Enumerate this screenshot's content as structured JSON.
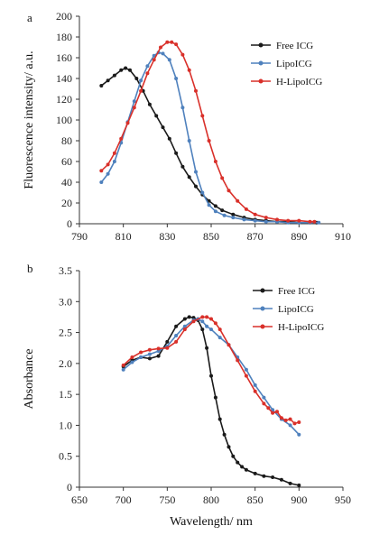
{
  "chart_data": [
    {
      "type": "line",
      "panel_label": "a",
      "xlabel": "",
      "ylabel": "Fluorescence intensity/ a.u.",
      "xlim": [
        790,
        910
      ],
      "ylim": [
        0,
        200
      ],
      "xticks": [
        790,
        810,
        830,
        850,
        870,
        890,
        910
      ],
      "yticks": [
        0,
        20,
        40,
        60,
        80,
        100,
        120,
        140,
        160,
        180,
        200
      ],
      "grid": false,
      "legend_position": "top-right",
      "series": [
        {
          "name": "Free ICG",
          "color": "#1a1a1a",
          "x": [
            800,
            803,
            806,
            809,
            811,
            813,
            816,
            819,
            822,
            825,
            828,
            831,
            834,
            837,
            840,
            843,
            846,
            849,
            852,
            855,
            860,
            865,
            870,
            875,
            880,
            885,
            890,
            895,
            898
          ],
          "y": [
            133,
            138,
            143,
            148,
            150,
            148,
            140,
            128,
            115,
            104,
            93,
            82,
            68,
            55,
            45,
            36,
            28,
            22,
            17,
            13,
            9,
            6,
            4,
            3,
            2,
            2,
            1,
            1,
            1
          ]
        },
        {
          "name": "LipoICG",
          "color": "#4f81bd",
          "x": [
            800,
            803,
            806,
            809,
            812,
            815,
            818,
            821,
            824,
            826,
            828,
            831,
            834,
            837,
            840,
            843,
            846,
            849,
            852,
            856,
            860,
            865,
            870,
            875,
            880,
            885,
            890,
            895,
            899
          ],
          "y": [
            40,
            48,
            60,
            78,
            98,
            118,
            138,
            152,
            162,
            165,
            164,
            158,
            140,
            112,
            80,
            50,
            30,
            18,
            12,
            8,
            6,
            4,
            3,
            2,
            2,
            1,
            1,
            1,
            1
          ]
        },
        {
          "name": "H-LipoICG",
          "color": "#d9302a",
          "x": [
            800,
            803,
            806,
            809,
            812,
            815,
            818,
            821,
            824,
            827,
            830,
            832,
            834,
            837,
            840,
            843,
            846,
            849,
            852,
            855,
            858,
            862,
            866,
            870,
            875,
            880,
            885,
            890,
            895,
            897
          ],
          "y": [
            51,
            57,
            68,
            82,
            97,
            112,
            128,
            145,
            158,
            170,
            175,
            175,
            173,
            163,
            148,
            128,
            104,
            80,
            60,
            44,
            32,
            22,
            14,
            9,
            6,
            4,
            3,
            3,
            2,
            2
          ]
        }
      ]
    },
    {
      "type": "line",
      "panel_label": "b",
      "xlabel": "Wavelength/ nm",
      "ylabel": "Absorbance",
      "xlim": [
        650,
        950
      ],
      "ylim": [
        0,
        3.5
      ],
      "xticks": [
        650,
        700,
        750,
        800,
        850,
        900,
        950
      ],
      "yticks": [
        "0",
        "0.5",
        "1.0",
        "1.5",
        "2.0",
        "2.5",
        "3.0",
        "3.5"
      ],
      "grid": false,
      "legend_position": "top-right",
      "series": [
        {
          "name": "Free ICG",
          "color": "#1a1a1a",
          "x": [
            700,
            710,
            720,
            730,
            740,
            750,
            760,
            770,
            775,
            780,
            785,
            790,
            795,
            800,
            805,
            810,
            815,
            820,
            825,
            830,
            835,
            840,
            850,
            860,
            870,
            880,
            890,
            900
          ],
          "y": [
            1.95,
            2.05,
            2.1,
            2.08,
            2.12,
            2.35,
            2.6,
            2.72,
            2.75,
            2.74,
            2.7,
            2.55,
            2.25,
            1.8,
            1.45,
            1.1,
            0.85,
            0.65,
            0.5,
            0.4,
            0.33,
            0.28,
            0.22,
            0.18,
            0.16,
            0.12,
            0.06,
            0.03
          ]
        },
        {
          "name": "LipoICG",
          "color": "#4f81bd",
          "x": [
            700,
            710,
            720,
            730,
            740,
            750,
            760,
            770,
            780,
            785,
            790,
            795,
            800,
            810,
            820,
            830,
            840,
            850,
            860,
            870,
            880,
            890,
            900
          ],
          "y": [
            1.9,
            2.02,
            2.1,
            2.15,
            2.2,
            2.28,
            2.45,
            2.6,
            2.7,
            2.72,
            2.68,
            2.6,
            2.55,
            2.42,
            2.3,
            2.1,
            1.9,
            1.65,
            1.45,
            1.25,
            1.1,
            1.0,
            0.85
          ]
        },
        {
          "name": "H-LipoICG",
          "color": "#d9302a",
          "x": [
            700,
            710,
            720,
            730,
            740,
            750,
            760,
            770,
            780,
            790,
            795,
            800,
            805,
            810,
            820,
            830,
            840,
            850,
            860,
            865,
            870,
            875,
            880,
            885,
            890,
            895,
            900
          ],
          "y": [
            1.97,
            2.1,
            2.18,
            2.22,
            2.24,
            2.25,
            2.35,
            2.55,
            2.68,
            2.75,
            2.75,
            2.72,
            2.65,
            2.55,
            2.3,
            2.05,
            1.8,
            1.55,
            1.35,
            1.28,
            1.2,
            1.22,
            1.12,
            1.08,
            1.1,
            1.03,
            1.05
          ]
        }
      ]
    }
  ]
}
